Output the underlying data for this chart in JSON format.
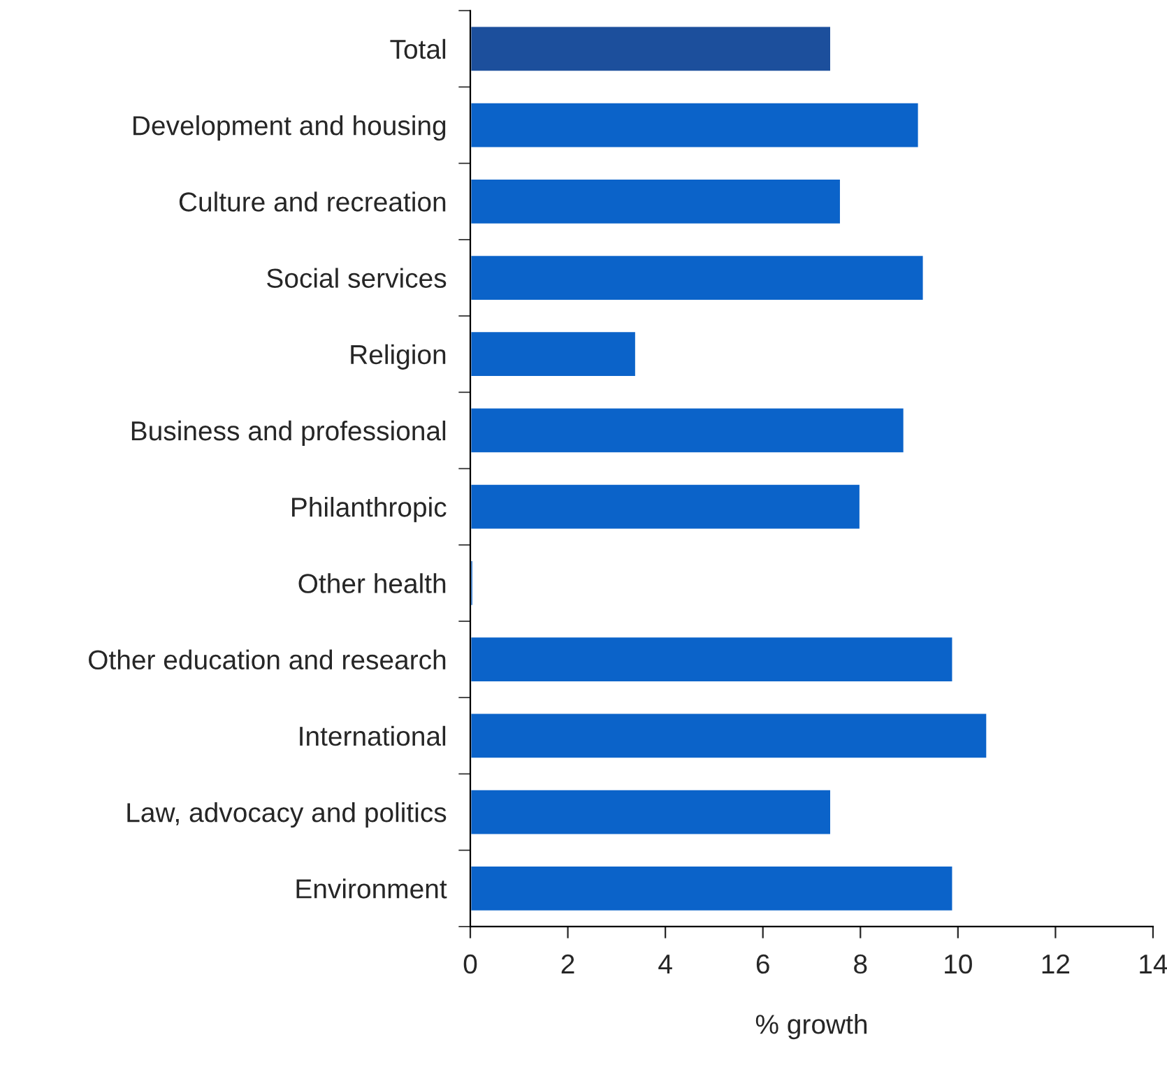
{
  "chart_data": {
    "type": "bar",
    "orientation": "horizontal",
    "xlabel": "% growth",
    "categories": [
      "Total",
      "Development and housing",
      "Culture and recreation",
      "Social services",
      "Religion",
      "Business and professional",
      "Philanthropic",
      "Other health",
      "Other education and research",
      "International",
      "Law, advocacy and politics",
      "Environment"
    ],
    "values": [
      7.4,
      9.2,
      7.6,
      9.3,
      3.4,
      8.9,
      8.0,
      0.06,
      9.9,
      10.6,
      7.4,
      9.9
    ],
    "colors": [
      "#1c4f9c",
      "#0b63c9",
      "#0b63c9",
      "#0b63c9",
      "#0b63c9",
      "#0b63c9",
      "#0b63c9",
      "#0b63c9",
      "#0b63c9",
      "#0b63c9",
      "#0b63c9",
      "#0b63c9"
    ],
    "xlim": [
      0,
      14
    ],
    "xticks": [
      0,
      2,
      4,
      6,
      8,
      10,
      12,
      14
    ],
    "grid": false
  }
}
